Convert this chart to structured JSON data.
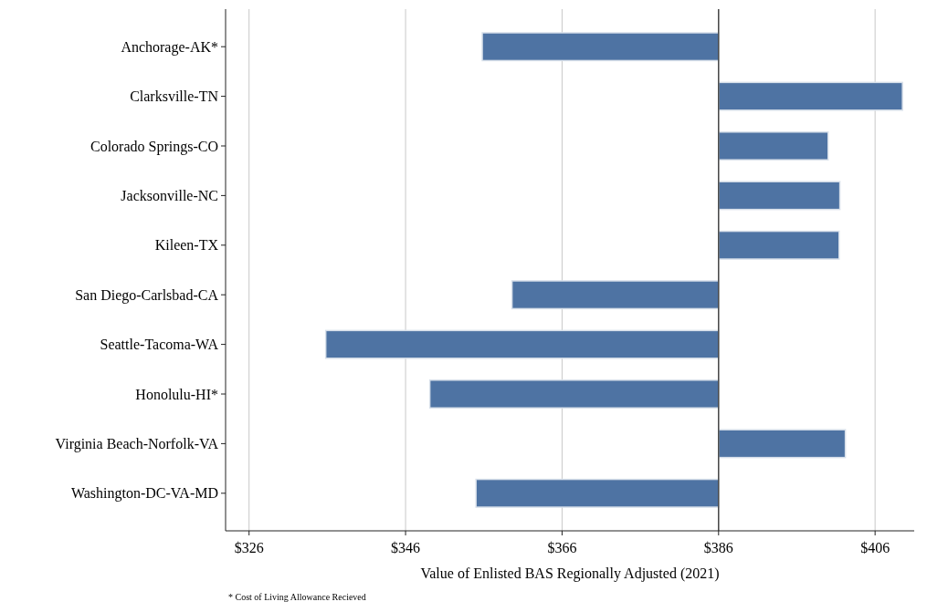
{
  "chart_data": {
    "type": "bar",
    "orientation": "horizontal",
    "xlabel": "Value of Enlisted BAS Regionally Adjusted (2021)",
    "categories": [
      "Anchorage-AK*",
      "Clarksville-TN",
      "Colorado Springs-CO",
      "Jacksonville-NC",
      "Kileen-TX",
      "San Diego-Carlsbad-CA",
      "Seattle-Tacoma-WA",
      "Honolulu-HI*",
      "Virginia Beach-Norfolk-VA",
      "Washington-DC-VA-MD"
    ],
    "base": [
      386,
      386,
      386,
      386,
      386,
      386,
      386,
      386,
      386,
      386
    ],
    "values": [
      -30.2,
      23.5,
      14.0,
      15.5,
      15.4,
      -26.4,
      -50.2,
      -36.9,
      16.2,
      -31.0
    ],
    "color": "#4e73a3",
    "xlim": [
      323,
      411
    ],
    "xticks": [
      {
        "value": 326,
        "label": "$326"
      },
      {
        "value": 346,
        "label": "$346"
      },
      {
        "value": 366,
        "label": "$366"
      },
      {
        "value": 386,
        "label": "$386"
      },
      {
        "value": 406,
        "label": "$406"
      }
    ],
    "grid": "x",
    "ref_lines": [
      {
        "axis": "x",
        "value": 386,
        "color": "#333333"
      }
    ],
    "annotations": [
      "* Cost of Living Allowance Recieved"
    ]
  }
}
